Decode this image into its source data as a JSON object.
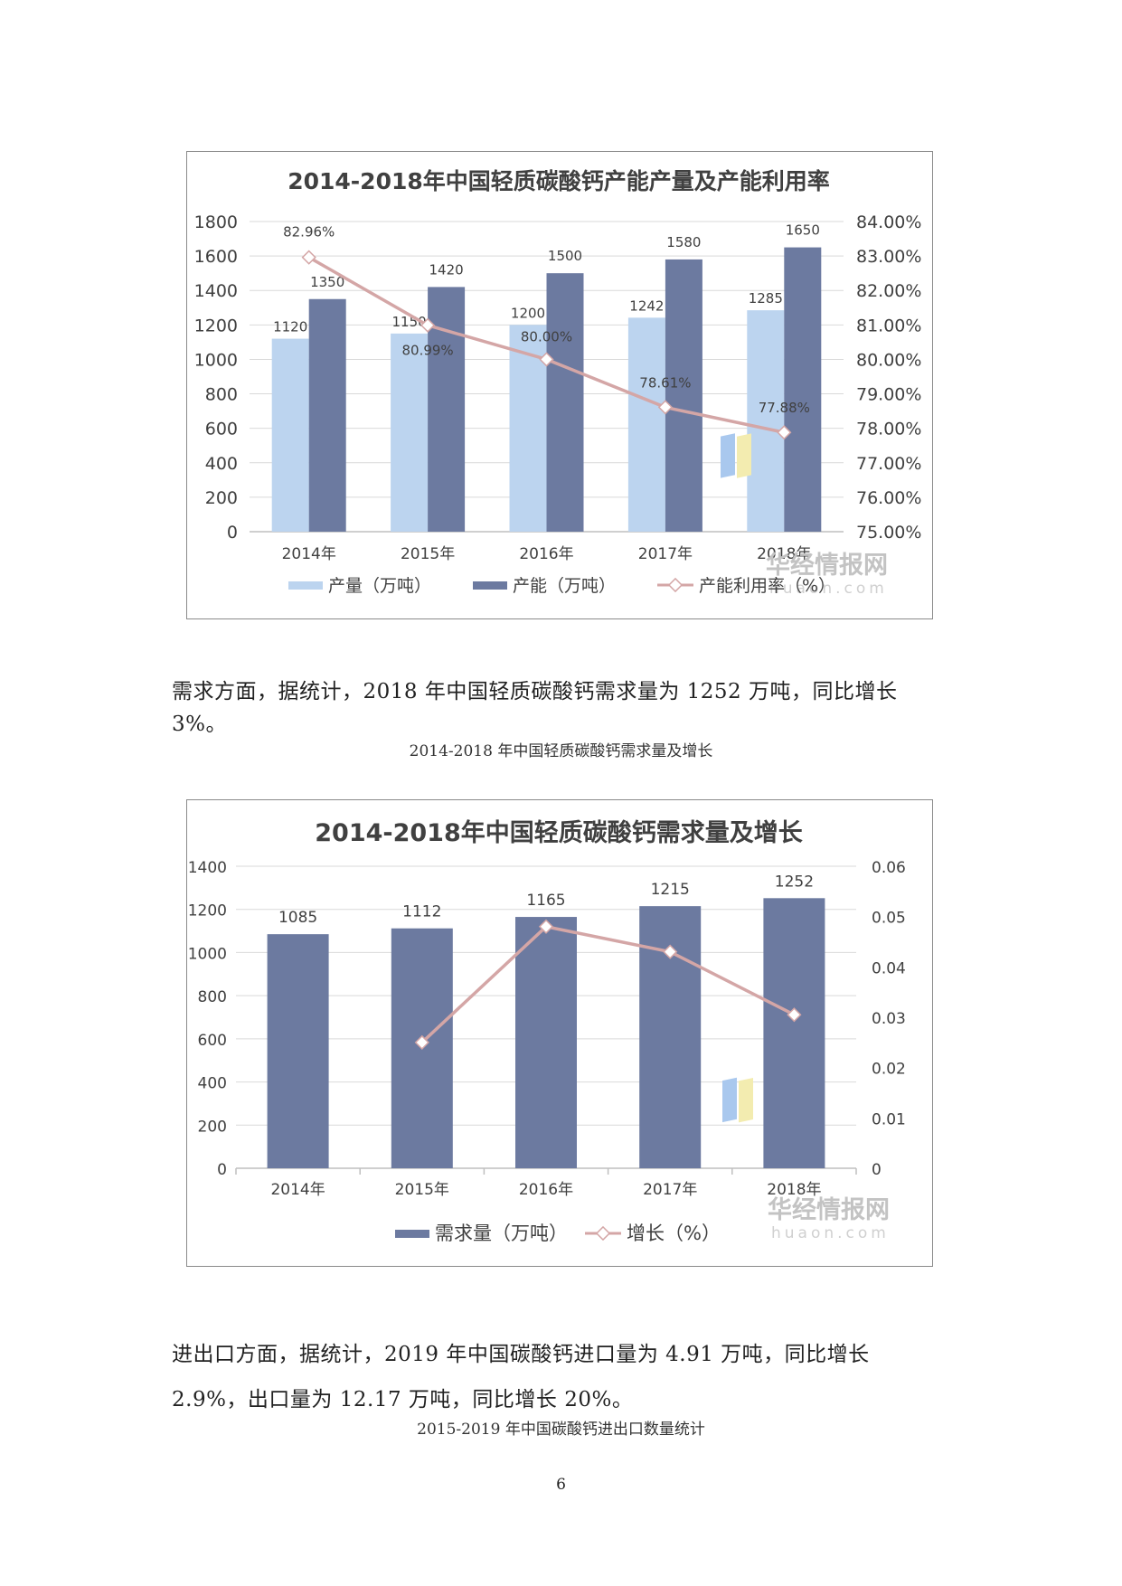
{
  "page": {
    "para1": "需求方面，据统计，2018 年中国轻质碳酸钙需求量为 1252 万吨，同比增长 3%。",
    "caption1": "2014-2018 年中国轻质碳酸钙需求量及增长",
    "para2": "进出口方面，据统计，2019 年中国碳酸钙进口量为 4.91 万吨，同比增长 2.9%，出口量为 12.17 万吨，同比增长 20%。",
    "caption2": "2015-2019 年中国碳酸钙进出口数量统计",
    "page_number": "6"
  },
  "watermark": {
    "brand": "华经情报网",
    "url": "huaon.com"
  },
  "colors": {
    "light_bar": "#bcd4ef",
    "dark_bar": "#6c7aa0",
    "rate_line": "#d4a6a6",
    "grid": "#d9d9d9"
  },
  "chart_data": [
    {
      "type": "bar",
      "title": "2014-2018年中国轻质碳酸钙产能产量及产能利用率",
      "categories": [
        "2014年",
        "2015年",
        "2016年",
        "2017年",
        "2018年"
      ],
      "ylim": [
        0,
        1800
      ],
      "yticks": [
        "0",
        "200",
        "400",
        "600",
        "800",
        "1000",
        "1200",
        "1400",
        "1600",
        "1800"
      ],
      "y2lim": [
        75,
        84
      ],
      "y2ticks": [
        "75.00%",
        "76.00%",
        "77.00%",
        "78.00%",
        "79.00%",
        "80.00%",
        "81.00%",
        "82.00%",
        "83.00%",
        "84.00%"
      ],
      "series": [
        {
          "name": "产量（万吨）",
          "kind": "bar",
          "values": [
            1120,
            1150,
            1200,
            1242,
            1285
          ],
          "labels": [
            "1120",
            "1150",
            "1200",
            "1242",
            "1285"
          ]
        },
        {
          "name": "产能（万吨）",
          "kind": "bar",
          "values": [
            1350,
            1420,
            1500,
            1580,
            1650
          ],
          "labels": [
            "1350",
            "1420",
            "1500",
            "1580",
            "1650"
          ]
        },
        {
          "name": "产能利用率（%）",
          "kind": "line",
          "axis": "right",
          "values": [
            82.96,
            80.99,
            80.0,
            78.61,
            77.88
          ],
          "labels": [
            "82.96%",
            "80.99%",
            "80.00%",
            "78.61%",
            "77.88%"
          ]
        }
      ],
      "legend_position": "bottom"
    },
    {
      "type": "bar",
      "title": "2014-2018年中国轻质碳酸钙需求量及增长",
      "categories": [
        "2014年",
        "2015年",
        "2016年",
        "2017年",
        "2018年"
      ],
      "ylim": [
        0,
        1400
      ],
      "yticks": [
        "0",
        "200",
        "400",
        "600",
        "800",
        "1000",
        "1200",
        "1400"
      ],
      "y2lim": [
        0,
        0.06
      ],
      "y2ticks": [
        "0",
        "0.01",
        "0.02",
        "0.03",
        "0.04",
        "0.05",
        "0.06"
      ],
      "series": [
        {
          "name": "需求量（万吨）",
          "kind": "bar",
          "values": [
            1085,
            1112,
            1165,
            1215,
            1252
          ],
          "labels": [
            "1085",
            "1112",
            "1165",
            "1215",
            "1252"
          ]
        },
        {
          "name": "增长（%）",
          "kind": "line",
          "axis": "right",
          "values": [
            null,
            0.025,
            0.048,
            0.043,
            0.0305
          ]
        }
      ],
      "legend_position": "bottom"
    }
  ]
}
